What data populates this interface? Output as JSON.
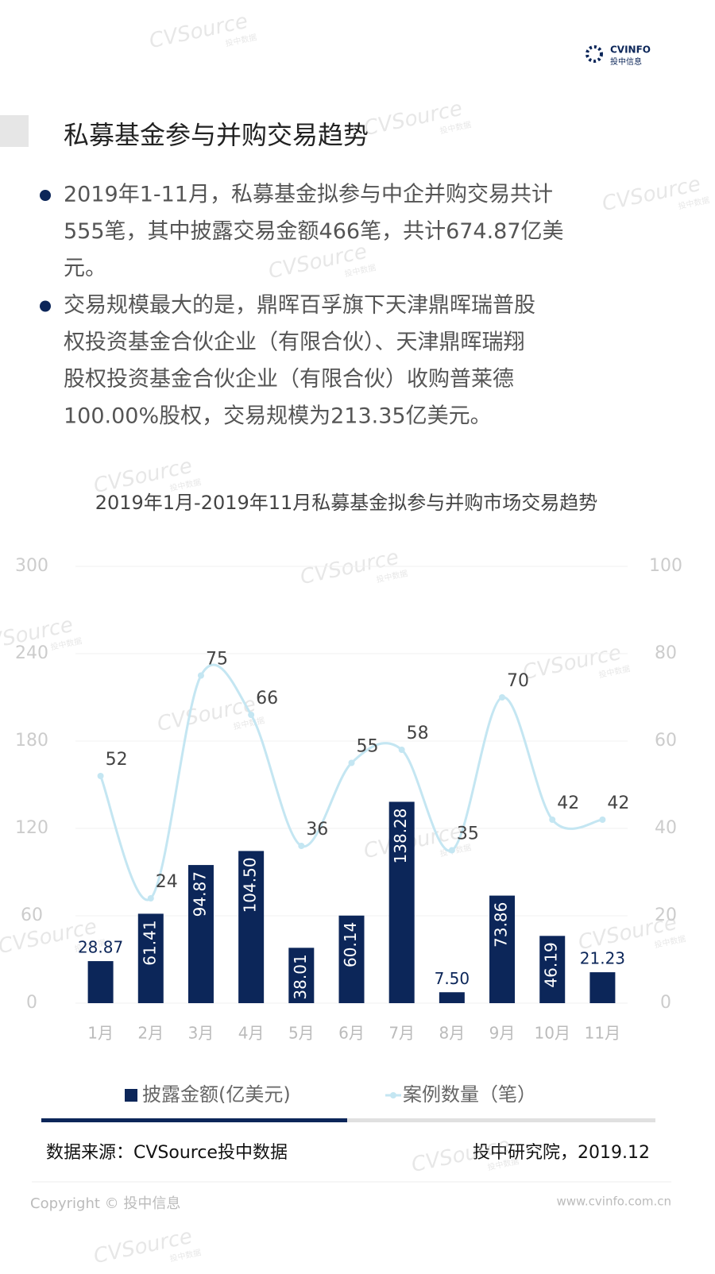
{
  "brand": {
    "logo": "CVINFO",
    "logo_sub": "投中信息",
    "watermark": "CVSource",
    "watermark_sub": "投中数据"
  },
  "title": "私募基金参与并购交易趋势",
  "bullets": [
    [
      "2019年1-11月，私募基金拟参与中企并购交易共计",
      "555笔，其中披露交易金额466笔，共计674.87亿美",
      "元。"
    ],
    [
      "交易规模最大的是，鼎晖百孚旗下天津鼎晖瑞普股",
      "权投资基金合伙企业（有限合伙）、天津鼎晖瑞翔",
      "股权投资基金合伙企业（有限合伙）收购普莱德",
      "100.00%股权，交易规模为213.35亿美元。"
    ]
  ],
  "chart_data": {
    "type": "bar",
    "title": "2019年1月-2019年11月私募基金拟参与并购市场交易趋势",
    "categories": [
      "1月",
      "2月",
      "3月",
      "4月",
      "5月",
      "6月",
      "7月",
      "8月",
      "9月",
      "10月",
      "11月"
    ],
    "series": [
      {
        "name": "披露金额(亿美元)",
        "type": "bar",
        "color": "#0c2659",
        "values": [
          28.87,
          61.41,
          94.87,
          104.5,
          38.01,
          60.14,
          138.28,
          7.5,
          73.86,
          46.19,
          21.23
        ],
        "value_labels": [
          "28.87",
          "61.41",
          "94.87",
          "104.50",
          "38.01",
          "60.14",
          "138.28",
          "7.50",
          "73.86",
          "46.19",
          "21.23"
        ]
      },
      {
        "name": "案例数量（笔）",
        "type": "line",
        "axis": "y2",
        "color": "#c4e6f2",
        "values": [
          52,
          24,
          75,
          66,
          36,
          55,
          58,
          35,
          70,
          42,
          42
        ]
      }
    ],
    "ylim": [
      0,
      300
    ],
    "yticks": [
      0,
      60,
      120,
      180,
      240,
      300
    ],
    "y2lim": [
      0,
      100
    ],
    "y2ticks": [
      0,
      20,
      40,
      60,
      80,
      100
    ],
    "grid": true,
    "legend": "bottom"
  },
  "source": "数据来源：CVSource投中数据",
  "org_date": "投中研究院，2019.12",
  "copyright": "Copyright © 投中信息",
  "website": "www.cvinfo.com.cn"
}
